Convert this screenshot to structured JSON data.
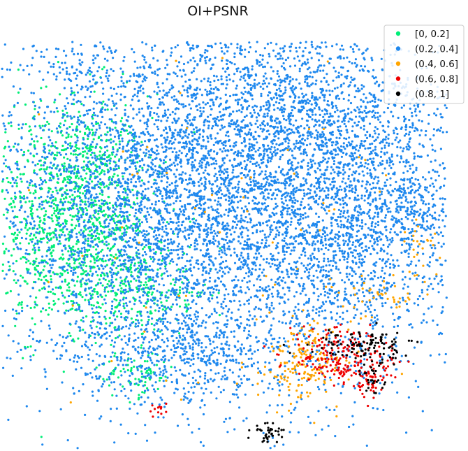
{
  "chart_data": {
    "type": "scatter",
    "title": "OI+PSNR",
    "xlabel": "",
    "ylabel": "",
    "axes_visible": false,
    "grid": false,
    "legend_placement": "top-right",
    "series": [
      {
        "name": "[0, 0.2]",
        "color": "#00ee77",
        "clusters": [
          {
            "cx": -26,
            "cy": 6,
            "sx": 7,
            "sy": 10,
            "n": 900
          },
          {
            "cx": -20,
            "cy": -3,
            "sx": 6,
            "sy": 6,
            "n": 350
          },
          {
            "cx": -10,
            "cy": -8,
            "sx": 4,
            "sy": 3,
            "n": 120
          },
          {
            "cx": -14,
            "cy": -22,
            "sx": 3,
            "sy": 2,
            "n": 80
          },
          {
            "cx": -22,
            "cy": 14,
            "sx": 4,
            "sy": 4,
            "n": 150
          }
        ]
      },
      {
        "name": "(0.2, 0.4]",
        "color": "#1e88ee",
        "clusters": [
          {
            "cx": 0,
            "cy": 10,
            "sx": 20,
            "sy": 17,
            "n": 5500
          },
          {
            "cx": -12,
            "cy": 4,
            "sx": 10,
            "sy": 12,
            "n": 900
          },
          {
            "cx": 15,
            "cy": 20,
            "sx": 10,
            "sy": 8,
            "n": 900
          },
          {
            "cx": 20,
            "cy": 0,
            "sx": 8,
            "sy": 10,
            "n": 700
          },
          {
            "cx": -6,
            "cy": -18,
            "sx": 9,
            "sy": 5,
            "n": 500
          },
          {
            "cx": -24,
            "cy": 30,
            "sx": 2.5,
            "sy": 1.5,
            "n": 40
          },
          {
            "cx": 30,
            "cy": 6,
            "sx": 3,
            "sy": 4,
            "n": 150
          }
        ]
      },
      {
        "name": "(0.4, 0.6]",
        "color": "#ffa500",
        "clusters": [
          {
            "cx": 13,
            "cy": -20,
            "sx": 3,
            "sy": 3,
            "n": 170
          },
          {
            "cx": 25,
            "cy": -8,
            "sx": 4,
            "sy": 2,
            "n": 45
          },
          {
            "cx": 32,
            "cy": 0,
            "sx": 1.5,
            "sy": 3,
            "n": 20
          },
          {
            "cx": 0,
            "cy": 5,
            "sx": 20,
            "sy": 20,
            "n": 70
          }
        ]
      },
      {
        "name": "(0.6, 0.8]",
        "color": "#ee0000",
        "clusters": [
          {
            "cx": 18,
            "cy": -19,
            "sx": 4,
            "sy": 2.5,
            "n": 190
          },
          {
            "cx": 24,
            "cy": -22,
            "sx": 2,
            "sy": 2,
            "n": 60
          },
          {
            "cx": -11,
            "cy": -28,
            "sx": 1,
            "sy": 0.5,
            "n": 12
          }
        ]
      },
      {
        "name": "(0.8, 1]",
        "color": "#000000",
        "clusters": [
          {
            "cx": 20,
            "cy": -17,
            "sx": 3,
            "sy": 1.2,
            "n": 60
          },
          {
            "cx": 25,
            "cy": -17,
            "sx": 2,
            "sy": 1.5,
            "n": 60
          },
          {
            "cx": 24,
            "cy": -23,
            "sx": 1,
            "sy": 1.5,
            "n": 25
          },
          {
            "cx": 7,
            "cy": -32,
            "sx": 1.5,
            "sy": 0.8,
            "n": 40
          }
        ]
      }
    ],
    "xlim": [
      -36,
      36
    ],
    "ylim": [
      -35,
      35
    ]
  }
}
